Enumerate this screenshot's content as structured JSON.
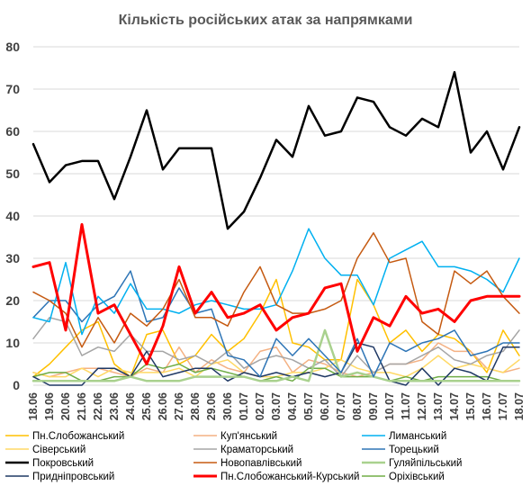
{
  "chart_data": {
    "type": "line",
    "title": "Кількість російських атак за напрямками",
    "xlabel": "",
    "ylabel": "",
    "ylim": [
      0,
      80
    ],
    "yticks": [
      0,
      10,
      20,
      30,
      40,
      50,
      60,
      70,
      80
    ],
    "grid": true,
    "legend_position": "bottom",
    "x": [
      "18.06",
      "19.06",
      "20.06",
      "21.06",
      "22.06",
      "23.06",
      "24.06",
      "25.06",
      "26.06",
      "27.06",
      "28.06",
      "29.06",
      "30.06",
      "01.07",
      "02.07",
      "03.07",
      "04.07",
      "05.07",
      "06.07",
      "07.07",
      "08.07",
      "09.07",
      "10.07",
      "11.07",
      "12.07",
      "13.07",
      "14.07",
      "15.07",
      "16.07",
      "17.07",
      "18.07"
    ],
    "series": [
      {
        "name": "Пн.Слобожанський",
        "color": "#ffc000",
        "width": 1.5,
        "values": [
          2,
          5,
          9,
          13,
          15,
          5,
          2,
          12,
          13,
          5,
          7,
          12,
          8,
          11,
          17,
          25,
          10,
          9,
          6,
          6,
          25,
          19,
          10,
          13,
          8,
          12,
          11,
          8,
          3,
          13,
          7
        ]
      },
      {
        "name": "Куп'янський",
        "color": "#f4b183",
        "width": 1.5,
        "values": [
          3,
          2,
          3,
          4,
          4,
          3,
          2,
          4,
          3,
          9,
          3,
          6,
          4,
          3,
          8,
          9,
          3,
          6,
          5,
          3,
          2,
          3,
          5,
          5,
          6,
          10,
          8,
          8,
          4,
          3,
          4
        ]
      },
      {
        "name": "Лиманський",
        "color": "#00b0f0",
        "width": 1.5,
        "values": [
          16,
          15,
          29,
          12,
          21,
          17,
          24,
          18,
          18,
          17,
          19,
          20,
          19,
          18,
          18,
          19,
          27,
          37,
          30,
          26,
          26,
          19,
          30,
          32,
          34,
          28,
          28,
          27,
          25,
          22,
          30
        ]
      },
      {
        "name": "Сіверський",
        "color": "#ffd966",
        "width": 1.5,
        "values": [
          3,
          2,
          2,
          4,
          2,
          4,
          3,
          3,
          3,
          4,
          2,
          5,
          6,
          3,
          2,
          2,
          3,
          3,
          4,
          6,
          4,
          3,
          3,
          2,
          4,
          7,
          4,
          5,
          4,
          3,
          6
        ]
      },
      {
        "name": "Краматорський",
        "color": "#a5a5a5",
        "width": 1.5,
        "values": [
          11,
          16,
          15,
          7,
          9,
          8,
          12,
          8,
          8,
          6,
          7,
          5,
          8,
          4,
          6,
          7,
          6,
          4,
          6,
          2,
          7,
          3,
          5,
          5,
          7,
          9,
          6,
          5,
          7,
          8,
          13
        ]
      },
      {
        "name": "Торецький",
        "color": "#2e75b6",
        "width": 1.5,
        "values": [
          16,
          20,
          20,
          15,
          19,
          21,
          27,
          15,
          16,
          23,
          17,
          18,
          7,
          6,
          2,
          11,
          7,
          11,
          7,
          3,
          11,
          2,
          10,
          8,
          10,
          11,
          13,
          7,
          8,
          10,
          10
        ]
      },
      {
        "name": "Покровський",
        "color": "#000000",
        "width": 2.5,
        "values": [
          57,
          48,
          52,
          53,
          53,
          44,
          54,
          65,
          51,
          56,
          56,
          56,
          37,
          41,
          49,
          58,
          54,
          66,
          59,
          60,
          68,
          67,
          61,
          59,
          63,
          61,
          74,
          55,
          60,
          51,
          61
        ]
      },
      {
        "name": "Новопавлівський",
        "color": "#c55a11",
        "width": 1.5,
        "values": [
          22,
          20,
          17,
          9,
          16,
          10,
          17,
          14,
          18,
          25,
          16,
          16,
          14,
          22,
          28,
          19,
          17,
          17,
          18,
          20,
          30,
          36,
          29,
          30,
          15,
          12,
          27,
          24,
          27,
          21,
          17
        ]
      },
      {
        "name": "Гуляйпільський",
        "color": "#a9d18e",
        "width": 2.5,
        "values": [
          1,
          1,
          1,
          1,
          1,
          1,
          2,
          1,
          1,
          1,
          2,
          2,
          2,
          2,
          1,
          1,
          2,
          1,
          13,
          2,
          3,
          2,
          1,
          1,
          1,
          1,
          1,
          1,
          1,
          1,
          1
        ]
      },
      {
        "name": "Придніпровський",
        "color": "#1f3864",
        "width": 1.5,
        "values": [
          2,
          0,
          0,
          0,
          4,
          4,
          2,
          8,
          2,
          3,
          4,
          4,
          1,
          3,
          2,
          3,
          2,
          3,
          2,
          3,
          10,
          9,
          1,
          0,
          4,
          0,
          4,
          3,
          1,
          9,
          9
        ]
      },
      {
        "name": "Пн.Слобожанський-Курський",
        "color": "#ff0000",
        "width": 3,
        "values": [
          28,
          29,
          13,
          38,
          17,
          19,
          12,
          5,
          14,
          28,
          17,
          22,
          16,
          17,
          19,
          13,
          16,
          17,
          23,
          24,
          8,
          16,
          14,
          21,
          17,
          18,
          15,
          20,
          21,
          21,
          21
        ]
      },
      {
        "name": "Оріхівський",
        "color": "#70ad47",
        "width": 1.5,
        "values": [
          2,
          3,
          3,
          1,
          1,
          2,
          2,
          5,
          4,
          5,
          3,
          4,
          3,
          2,
          1,
          2,
          1,
          4,
          4,
          2,
          2,
          2,
          1,
          2,
          1,
          2,
          2,
          2,
          2,
          1,
          1
        ]
      }
    ]
  }
}
